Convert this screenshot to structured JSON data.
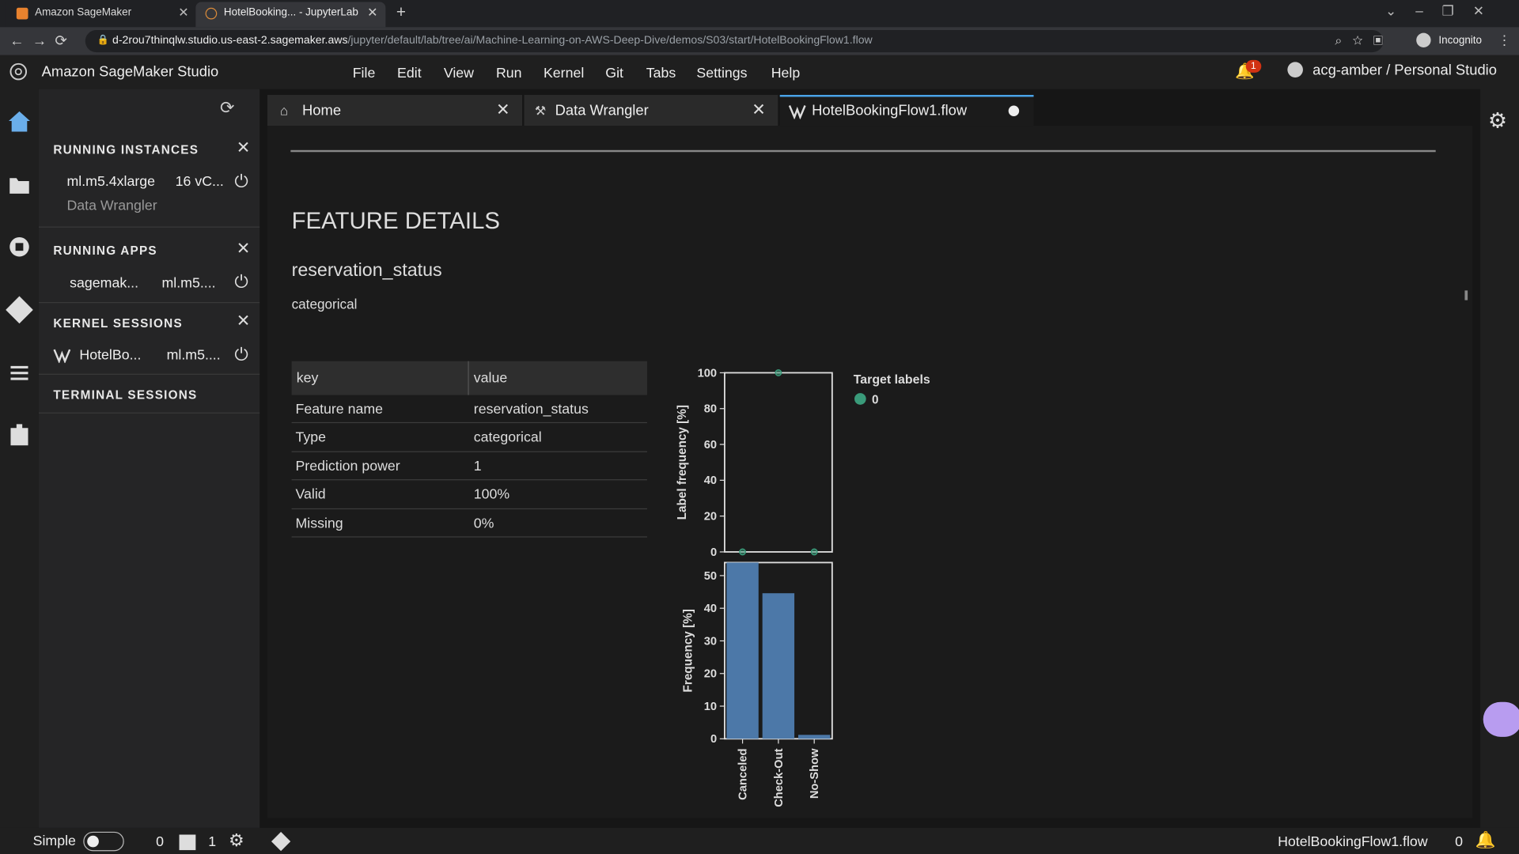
{
  "browser": {
    "tabs": [
      "Amazon SageMaker",
      "HotelBooking... - JupyterLab"
    ],
    "url_host": "d-2rou7thinqlw.studio.us-east-2.sagemaker.aws",
    "url_path": "/jupyter/default/lab/tree/ai/Machine-Learning-on-AWS-Deep-Dive/demos/S03/start/HotelBookingFlow1.flow",
    "profile": "Incognito"
  },
  "app": {
    "title": "Amazon SageMaker Studio",
    "menu": [
      "File",
      "Edit",
      "View",
      "Run",
      "Kernel",
      "Git",
      "Tabs",
      "Settings",
      "Help"
    ],
    "notifications": "1",
    "user": "acg-amber / Personal Studio"
  },
  "sidebar": {
    "running_instances": {
      "title": "RUNNING INSTANCES",
      "name": "ml.m5.4xlarge",
      "detail": "16 vC...",
      "app": "Data Wrangler"
    },
    "running_apps": {
      "title": "RUNNING APPS",
      "name": "sagemak...",
      "detail": "ml.m5...."
    },
    "kernel_sessions": {
      "title": "KERNEL SESSIONS",
      "name": "HotelBo...",
      "detail": "ml.m5...."
    },
    "terminal_sessions": {
      "title": "TERMINAL SESSIONS"
    }
  },
  "doc_tabs": [
    "Home",
    "Data Wrangler",
    "HotelBookingFlow1.flow"
  ],
  "feature": {
    "heading": "FEATURE DETAILS",
    "name": "reservation_status",
    "kind": "categorical",
    "table": {
      "header": [
        "key",
        "value"
      ],
      "rows": [
        [
          "Feature name",
          "reservation_status"
        ],
        [
          "Type",
          "categorical"
        ],
        [
          "Prediction power",
          "1"
        ],
        [
          "Valid",
          "100%"
        ],
        [
          "Missing",
          "0%"
        ]
      ]
    }
  },
  "chart_data": [
    {
      "type": "scatter",
      "ylabel": "Label frequency [%]",
      "legend_title": "Target labels",
      "categories": [
        null,
        null,
        null
      ],
      "series": [
        {
          "name": "0",
          "color": "#3a9b7a",
          "values": [
            0,
            100,
            0
          ]
        }
      ],
      "ylim": [
        0,
        100
      ],
      "yticks": [
        0,
        20,
        40,
        60,
        80,
        100
      ]
    },
    {
      "type": "bar",
      "ylabel": "Frequency [%]",
      "categories": [
        "Canceled",
        "Check-Out",
        "No-Show"
      ],
      "values": [
        54,
        44.6,
        1.2
      ],
      "color": "#4c78a8",
      "ylim": [
        0,
        54
      ],
      "yticks": [
        0,
        10,
        20,
        30,
        40,
        50
      ]
    }
  ],
  "status_bar": {
    "mode": "Simple",
    "count_a": "0",
    "count_b": "1",
    "file": "HotelBookingFlow1.flow",
    "count_c": "0"
  }
}
